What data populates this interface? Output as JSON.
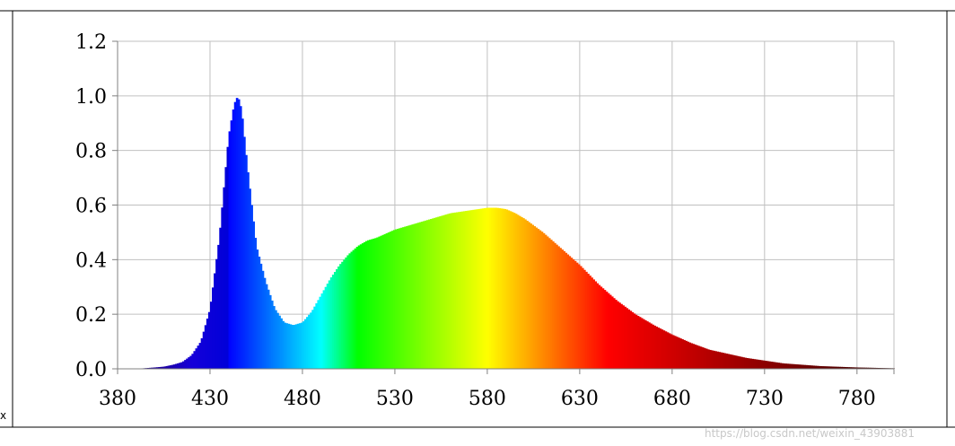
{
  "chart_data": {
    "type": "area",
    "title": "",
    "xlabel": "",
    "ylabel": "",
    "xlim": [
      380,
      800
    ],
    "ylim": [
      0,
      1.2
    ],
    "grid": true,
    "legend": "none",
    "x_ticks": [
      "380",
      "430",
      "480",
      "530",
      "580",
      "630",
      "680",
      "730",
      "780"
    ],
    "x_tick_values": [
      380,
      430,
      480,
      530,
      580,
      630,
      680,
      730,
      780
    ],
    "y_ticks": [
      "0.0",
      "0.2",
      "0.4",
      "0.6",
      "0.8",
      "1.0",
      "1.2"
    ],
    "y_tick_values": [
      0,
      0.2,
      0.4,
      0.6,
      0.8,
      1.0,
      1.2
    ],
    "fill": "wavelength-color spectrum",
    "series": [
      {
        "x": [
          380,
          390,
          400,
          405,
          410,
          415,
          420,
          425,
          430,
          435,
          440,
          443,
          445,
          447,
          450,
          455,
          460,
          465,
          470,
          475,
          480,
          485,
          490,
          495,
          500,
          505,
          510,
          515,
          520,
          530,
          540,
          550,
          560,
          570,
          580,
          585,
          590,
          595,
          600,
          610,
          620,
          630,
          640,
          650,
          660,
          670,
          680,
          690,
          700,
          720,
          740,
          760,
          780,
          800
        ],
        "y": [
          0.0,
          0.0,
          0.005,
          0.008,
          0.015,
          0.025,
          0.05,
          0.1,
          0.22,
          0.48,
          0.85,
          0.97,
          1.0,
          0.95,
          0.75,
          0.45,
          0.32,
          0.22,
          0.17,
          0.16,
          0.17,
          0.21,
          0.27,
          0.33,
          0.38,
          0.42,
          0.45,
          0.47,
          0.48,
          0.51,
          0.53,
          0.55,
          0.57,
          0.58,
          0.59,
          0.59,
          0.585,
          0.57,
          0.55,
          0.5,
          0.44,
          0.38,
          0.31,
          0.25,
          0.2,
          0.16,
          0.125,
          0.095,
          0.07,
          0.04,
          0.02,
          0.01,
          0.005,
          0.002
        ]
      }
    ]
  },
  "watermark": "https://blog.csdn.net/weixin_43903881",
  "edge_char": "x",
  "colors": {
    "grid": "#c0c0c0",
    "axis": "#808080",
    "frame": "#000000"
  }
}
